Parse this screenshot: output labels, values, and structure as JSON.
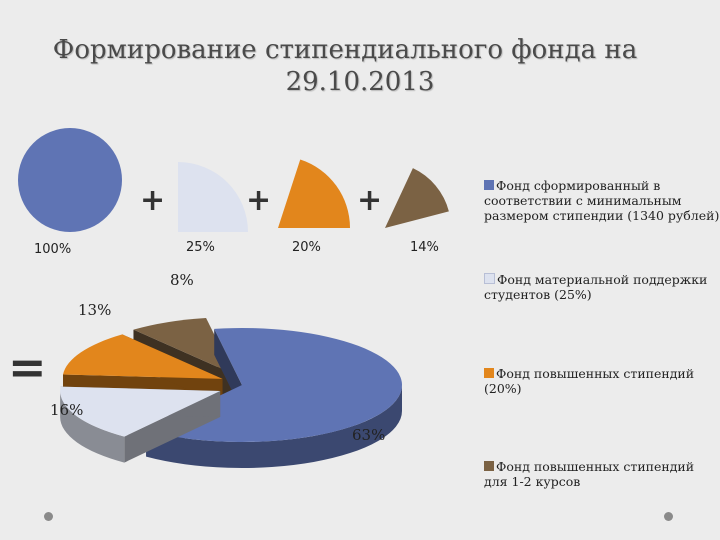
{
  "title": {
    "line1": "Формирование стипендиального фонда на",
    "line2": "29.10.2013"
  },
  "operators": {
    "plus": "+",
    "equals": "="
  },
  "shapes": [
    {
      "label": "100%",
      "value": 100,
      "color": "#5f74b4"
    },
    {
      "label": "25%",
      "value": 25,
      "color": "#dde2ef"
    },
    {
      "label": "20%",
      "value": 20,
      "color": "#e2861c"
    },
    {
      "label": "14%",
      "value": 14,
      "color": "#7b6244"
    }
  ],
  "chart_data": {
    "type": "pie",
    "categories": [
      "Фонд сформированный в соответствии с минимальным размером стипендии (1340 рублей)",
      "Фонд материальной поддержки студентов (25%)",
      "Фонд повышенных стипендий (20%)",
      "Фонд повышенных стипендий для 1-2 курсов"
    ],
    "values": [
      63,
      16,
      13,
      8
    ],
    "labels": [
      "63%",
      "16%",
      "13%",
      "8%"
    ],
    "colors": [
      "#5f74b4",
      "#dde2ef",
      "#e2861c",
      "#7b6244"
    ],
    "legend": "right"
  },
  "legend": [
    {
      "text": "Фонд сформированный в соответствии с минимальным размером стипендии (1340 рублей)",
      "color": "#5f74b4"
    },
    {
      "text": "Фонд материальной поддержки студентов (25%)",
      "color": "#dde2ef"
    },
    {
      "text": "Фонд повышенных стипендий (20%)",
      "color": "#e2861c"
    },
    {
      "text": "Фонд повышенных стипендий для 1-2 курсов",
      "color": "#7b6244"
    }
  ]
}
